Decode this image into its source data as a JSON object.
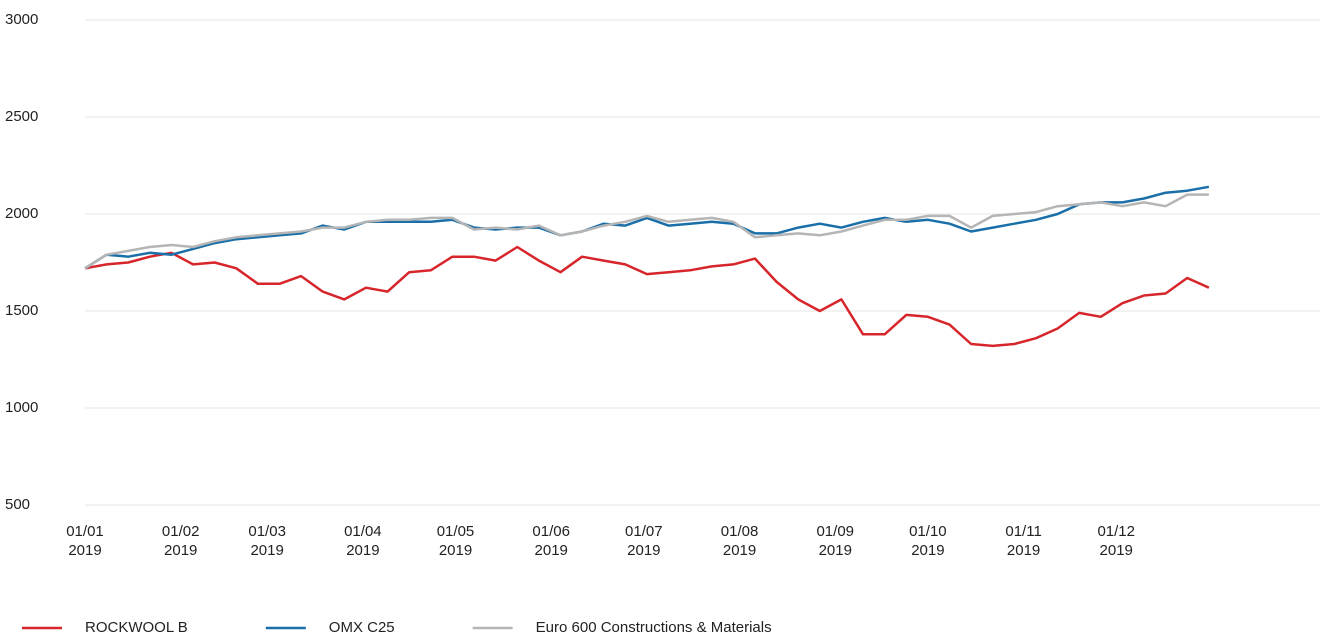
{
  "chart_data": {
    "type": "line",
    "x": [
      "2019-01-01",
      "2019-01-08",
      "2019-01-15",
      "2019-01-22",
      "2019-01-29",
      "2019-02-05",
      "2019-02-12",
      "2019-02-19",
      "2019-02-26",
      "2019-03-05",
      "2019-03-12",
      "2019-03-19",
      "2019-03-26",
      "2019-04-02",
      "2019-04-09",
      "2019-04-16",
      "2019-04-23",
      "2019-04-30",
      "2019-05-07",
      "2019-05-14",
      "2019-05-21",
      "2019-05-28",
      "2019-06-04",
      "2019-06-11",
      "2019-06-18",
      "2019-06-25",
      "2019-07-02",
      "2019-07-09",
      "2019-07-16",
      "2019-07-23",
      "2019-07-30",
      "2019-08-06",
      "2019-08-13",
      "2019-08-20",
      "2019-08-27",
      "2019-09-03",
      "2019-09-10",
      "2019-09-17",
      "2019-09-24",
      "2019-10-01",
      "2019-10-08",
      "2019-10-15",
      "2019-10-22",
      "2019-10-29",
      "2019-11-05",
      "2019-11-12",
      "2019-11-19",
      "2019-11-26",
      "2019-12-03",
      "2019-12-10",
      "2019-12-17",
      "2019-12-24",
      "2019-12-31"
    ],
    "series": [
      {
        "name": "ROCKWOOL B",
        "color": "#d7262b",
        "values": [
          1720,
          1740,
          1750,
          1780,
          1800,
          1740,
          1750,
          1720,
          1640,
          1640,
          1680,
          1600,
          1560,
          1620,
          1600,
          1700,
          1710,
          1780,
          1780,
          1760,
          1830,
          1760,
          1700,
          1780,
          1760,
          1740,
          1690,
          1700,
          1710,
          1730,
          1740,
          1770,
          1650,
          1560,
          1500,
          1560,
          1380,
          1380,
          1480,
          1470,
          1430,
          1330,
          1320,
          1330,
          1360,
          1410,
          1490,
          1470,
          1540,
          1580,
          1590,
          1670,
          1620
        ]
      },
      {
        "name": "OMX C25",
        "color": "#1a6fa8",
        "values": [
          1720,
          1790,
          1780,
          1800,
          1790,
          1820,
          1850,
          1870,
          1880,
          1890,
          1900,
          1940,
          1920,
          1960,
          1960,
          1960,
          1960,
          1970,
          1930,
          1920,
          1930,
          1930,
          1890,
          1910,
          1950,
          1940,
          1980,
          1940,
          1950,
          1960,
          1950,
          1900,
          1900,
          1930,
          1950,
          1930,
          1960,
          1980,
          1960,
          1970,
          1950,
          1910,
          1930,
          1950,
          1970,
          2000,
          2050,
          2060,
          2060,
          2080,
          2110,
          2120,
          2140
        ]
      },
      {
        "name": "Euro 600 Constructions & Materials",
        "color": "#b5b5b5",
        "values": [
          1720,
          1790,
          1810,
          1830,
          1840,
          1830,
          1860,
          1880,
          1890,
          1900,
          1910,
          1930,
          1930,
          1960,
          1970,
          1970,
          1980,
          1980,
          1920,
          1930,
          1920,
          1940,
          1890,
          1910,
          1940,
          1960,
          1990,
          1960,
          1970,
          1980,
          1960,
          1880,
          1890,
          1900,
          1890,
          1910,
          1940,
          1970,
          1970,
          1990,
          1990,
          1930,
          1990,
          2000,
          2010,
          2040,
          2050,
          2060,
          2040,
          2060,
          2040,
          2100,
          2100
        ]
      }
    ],
    "xlim": [
      "2019-01-01",
      "2020-02-05"
    ],
    "xticks": [
      {
        "value": "2019-01-01",
        "label": "01/01\n2019"
      },
      {
        "value": "2019-02-01",
        "label": "01/02\n2019"
      },
      {
        "value": "2019-03-01",
        "label": "01/03\n2019"
      },
      {
        "value": "2019-04-01",
        "label": "01/04\n2019"
      },
      {
        "value": "2019-05-01",
        "label": "01/05\n2019"
      },
      {
        "value": "2019-06-01",
        "label": "01/06\n2019"
      },
      {
        "value": "2019-07-01",
        "label": "01/07\n2019"
      },
      {
        "value": "2019-08-01",
        "label": "01/08\n2019"
      },
      {
        "value": "2019-09-01",
        "label": "01/09\n2019"
      },
      {
        "value": "2019-10-01",
        "label": "01/10\n2019"
      },
      {
        "value": "2019-11-01",
        "label": "01/11\n2019"
      },
      {
        "value": "2019-12-01",
        "label": "01/12\n2019"
      }
    ],
    "ylim": [
      500,
      3000
    ],
    "yticks": [
      500,
      1000,
      1500,
      2000,
      2500,
      3000
    ],
    "grid": true,
    "legend": "bottom"
  }
}
